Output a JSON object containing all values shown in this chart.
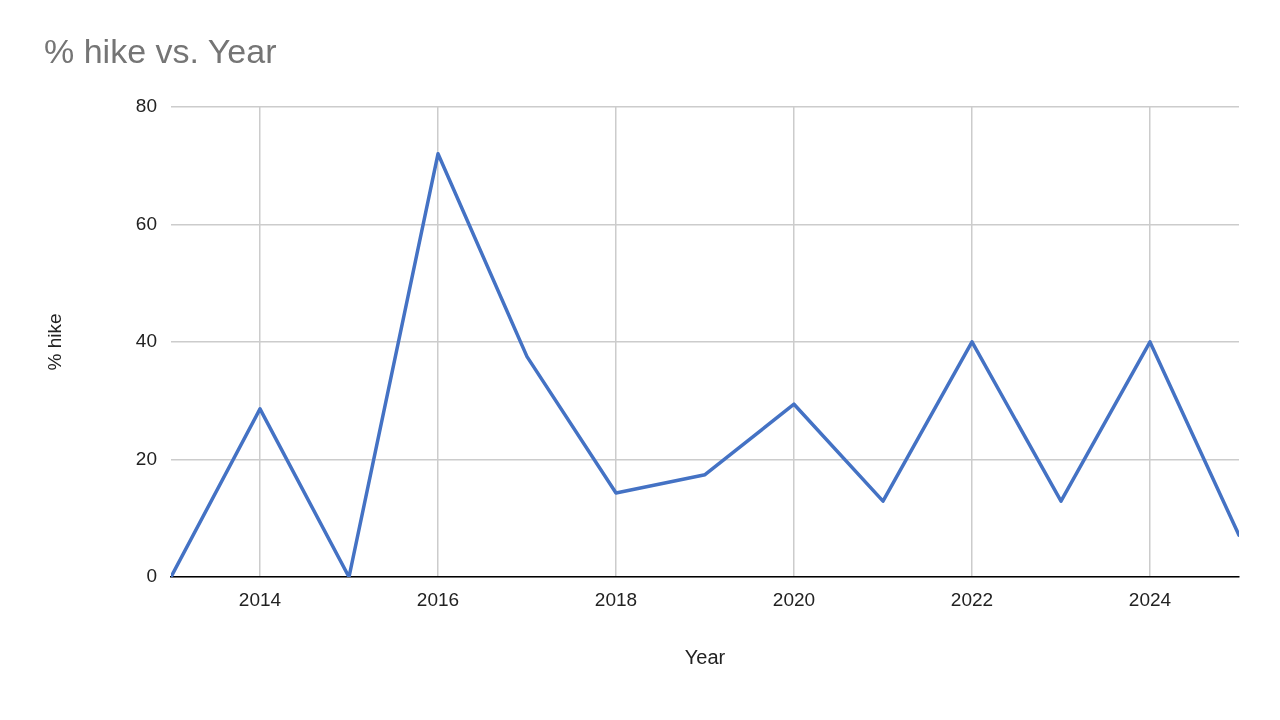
{
  "chart_data": {
    "type": "line",
    "title": "% hike vs. Year",
    "xlabel": "Year",
    "ylabel": "% hike",
    "x": [
      2013,
      2014,
      2015,
      2016,
      2017,
      2018,
      2019,
      2020,
      2021,
      2022,
      2023,
      2024,
      2025
    ],
    "values": [
      0,
      28.6,
      0,
      72,
      37.5,
      14.3,
      17.4,
      29.4,
      12.9,
      40,
      12.9,
      40,
      7.1
    ],
    "color": "#4472c4",
    "xlim": [
      2013,
      2025
    ],
    "xticks": [
      2014,
      2016,
      2018,
      2020,
      2022,
      2024
    ],
    "ylim": [
      0,
      80
    ],
    "yticks": [
      0,
      20,
      40,
      60,
      80
    ],
    "grid": true
  }
}
